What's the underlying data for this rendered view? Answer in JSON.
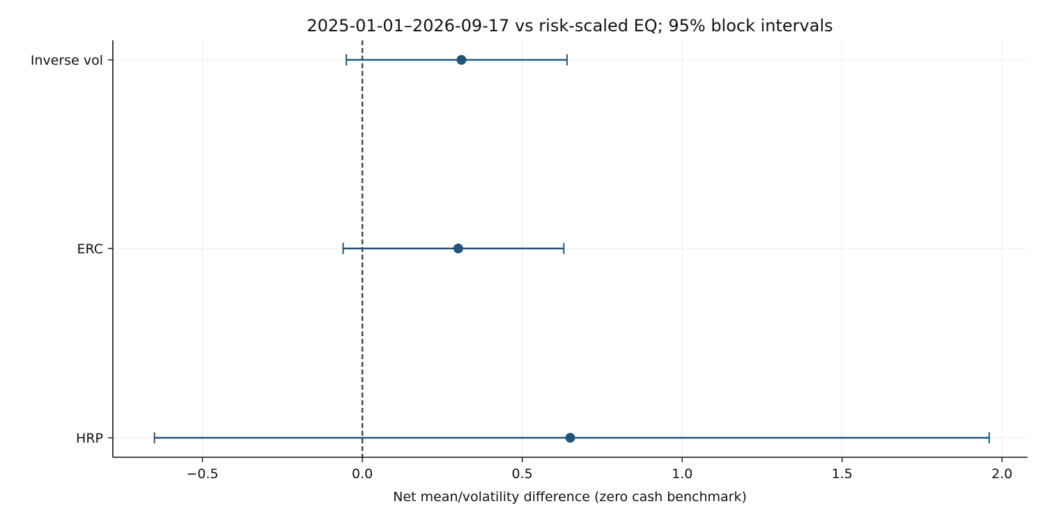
{
  "chart_data": {
    "type": "scatter",
    "title": "2025-01-01–2026-09-17 vs risk-scaled EQ; 95% block intervals",
    "xlabel": "Net mean/volatility difference (zero cash benchmark)",
    "ylabel": "",
    "xlim": [
      -0.78,
      2.08
    ],
    "xticks": [
      -0.5,
      0.0,
      0.5,
      1.0,
      1.5,
      2.0
    ],
    "xtick_labels": [
      "−0.5",
      "0.0",
      "0.5",
      "1.0",
      "1.5",
      "2.0"
    ],
    "reference_line": {
      "x": 0,
      "style": "dashed"
    },
    "grid": true,
    "categories": [
      "Inverse vol",
      "ERC",
      "HRP"
    ],
    "series": [
      {
        "estimates": [
          0.31,
          0.3,
          0.65
        ],
        "lower": [
          -0.05,
          -0.06,
          -0.65
        ],
        "upper": [
          0.64,
          0.63,
          1.96
        ]
      }
    ],
    "colors": {
      "marker": "#23547b",
      "reference": "#444444",
      "grid": "#ebebeb",
      "axis": "#111111"
    }
  }
}
